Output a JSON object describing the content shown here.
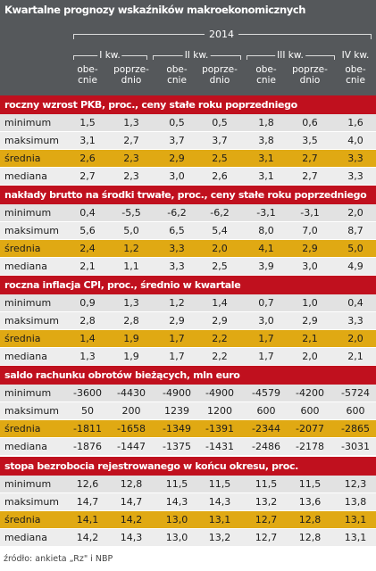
{
  "title": "Kwartalne prognozy wskaźników makroekonomicznych",
  "year": "2014",
  "quarters": [
    "I kw.",
    "II kw.",
    "III kw.",
    "IV kw."
  ],
  "subheaders": [
    "obe-\ncnie",
    "poprze-\ndnio",
    "obe-\ncnie",
    "poprze-\ndnio",
    "obe-\ncnie",
    "poprze-\ndnio",
    "obe-\ncnie"
  ],
  "sections": [
    {
      "title": "roczny wzrost PKB, proc., ceny stałe roku poprzedniego",
      "rows": [
        {
          "label": "minimum",
          "values": [
            "1,5",
            "1,3",
            "0,5",
            "0,5",
            "1,8",
            "0,6",
            "1,6"
          ]
        },
        {
          "label": "maksimum",
          "values": [
            "3,1",
            "2,7",
            "3,7",
            "3,7",
            "3,8",
            "3,5",
            "4,0"
          ]
        },
        {
          "label": "średnia",
          "values": [
            "2,6",
            "2,3",
            "2,9",
            "2,5",
            "3,1",
            "2,7",
            "3,3"
          ]
        },
        {
          "label": "mediana",
          "values": [
            "2,7",
            "2,3",
            "3,0",
            "2,6",
            "3,1",
            "2,7",
            "3,3"
          ]
        }
      ]
    },
    {
      "title": "nakłady brutto na środki trwałe, proc., ceny stałe roku poprzedniego",
      "rows": [
        {
          "label": "minimum",
          "values": [
            "0,4",
            "-5,5",
            "-6,2",
            "-6,2",
            "-3,1",
            "-3,1",
            "2,0"
          ]
        },
        {
          "label": "maksimum",
          "values": [
            "5,6",
            "5,0",
            "6,5",
            "5,4",
            "8,0",
            "7,0",
            "8,7"
          ]
        },
        {
          "label": "średnia",
          "values": [
            "2,4",
            "1,2",
            "3,3",
            "2,0",
            "4,1",
            "2,9",
            "5,0"
          ]
        },
        {
          "label": "mediana",
          "values": [
            "2,1",
            "1,1",
            "3,3",
            "2,5",
            "3,9",
            "3,0",
            "4,9"
          ]
        }
      ]
    },
    {
      "title": "roczna inflacja CPI, proc., średnio w kwartale",
      "rows": [
        {
          "label": "minimum",
          "values": [
            "0,9",
            "1,3",
            "1,2",
            "1,4",
            "0,7",
            "1,0",
            "0,4"
          ]
        },
        {
          "label": "maksimum",
          "values": [
            "2,8",
            "2,8",
            "2,9",
            "2,9",
            "3,0",
            "2,9",
            "3,3"
          ]
        },
        {
          "label": "średnia",
          "values": [
            "1,4",
            "1,9",
            "1,7",
            "2,2",
            "1,7",
            "2,1",
            "2,0"
          ]
        },
        {
          "label": "mediana",
          "values": [
            "1,3",
            "1,9",
            "1,7",
            "2,2",
            "1,7",
            "2,0",
            "2,1"
          ]
        }
      ]
    },
    {
      "title": "saldo rachunku obrotów bieżących, mln euro",
      "rows": [
        {
          "label": "minimum",
          "values": [
            "-3600",
            "-4430",
            "-4900",
            "-4900",
            "-4579",
            "-4200",
            "-5724"
          ]
        },
        {
          "label": "maksimum",
          "values": [
            "50",
            "200",
            "1239",
            "1200",
            "600",
            "600",
            "600"
          ]
        },
        {
          "label": "średnia",
          "values": [
            "-1811",
            "-1658",
            "-1349",
            "-1391",
            "-2344",
            "-2077",
            "-2865"
          ]
        },
        {
          "label": "mediana",
          "values": [
            "-1876",
            "-1447",
            "-1375",
            "-1431",
            "-2486",
            "-2178",
            "-3031"
          ]
        }
      ]
    },
    {
      "title": "stopa bezrobocia rejestrowanego w końcu okresu, proc.",
      "rows": [
        {
          "label": "minimum",
          "values": [
            "12,6",
            "12,8",
            "11,5",
            "11,5",
            "11,5",
            "11,5",
            "12,3"
          ]
        },
        {
          "label": "maksimum",
          "values": [
            "14,7",
            "14,7",
            "14,3",
            "14,3",
            "13,2",
            "13,6",
            "13,8"
          ]
        },
        {
          "label": "średnia",
          "values": [
            "14,1",
            "14,2",
            "13,0",
            "13,1",
            "12,7",
            "12,8",
            "13,1"
          ]
        },
        {
          "label": "mediana",
          "values": [
            "14,2",
            "14,3",
            "13,0",
            "13,2",
            "12,7",
            "12,8",
            "13,1"
          ]
        }
      ]
    }
  ],
  "footnote": "źródło: ankieta „Rz\" i NBP",
  "colors": {
    "header_bg": "#55585b",
    "section_bg": "#c0101e",
    "highlight_row": "#e0a913",
    "row_light": "#ededed",
    "row_dark": "#e2e2e2"
  }
}
